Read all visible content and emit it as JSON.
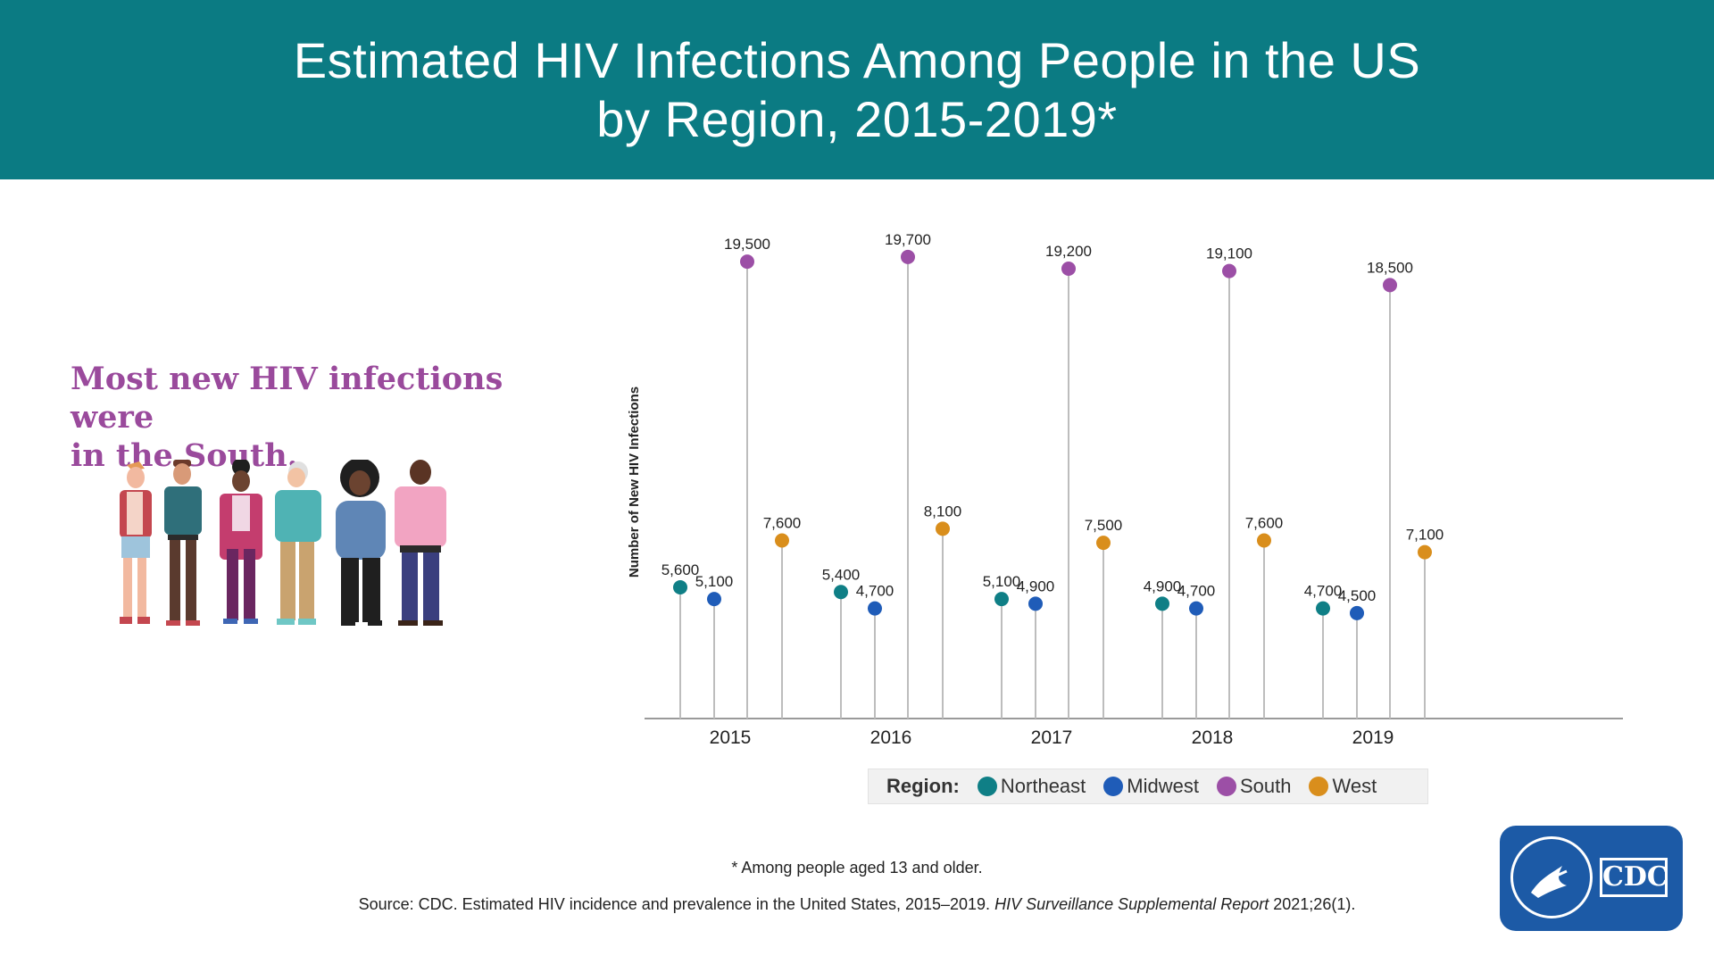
{
  "header": {
    "title_line1": "Estimated HIV Infections Among People in the US",
    "title_line2": "by Region, 2015-2019*"
  },
  "headline": {
    "line1": "Most new HIV infections were",
    "line2": "in the South."
  },
  "chart_data": {
    "type": "lollipop",
    "ylabel": "Number of New HIV Infections",
    "ylim": [
      0,
      20000
    ],
    "categories": [
      "2015",
      "2016",
      "2017",
      "2018",
      "2019"
    ],
    "series": [
      {
        "name": "Northeast",
        "color": "#0f7f86",
        "values": [
          5600,
          5400,
          5100,
          4900,
          4700
        ],
        "labels": [
          "5,600",
          "5,400",
          "5,100",
          "4,900",
          "4,700"
        ]
      },
      {
        "name": "Midwest",
        "color": "#1f5cb8",
        "values": [
          5100,
          4700,
          4900,
          4700,
          4500
        ],
        "labels": [
          "5,100",
          "4,700",
          "4,900",
          "4,700",
          "4,500"
        ]
      },
      {
        "name": "South",
        "color": "#9c4fa6",
        "values": [
          19500,
          19700,
          19200,
          19100,
          18500
        ],
        "labels": [
          "19,500",
          "19,700",
          "19,200",
          "19,100",
          "18,500"
        ]
      },
      {
        "name": "West",
        "color": "#d98e1c",
        "values": [
          7600,
          8100,
          7500,
          7600,
          7100
        ],
        "labels": [
          "7,600",
          "8,100",
          "7,500",
          "7,600",
          "7,100"
        ]
      }
    ]
  },
  "legend": {
    "title": "Region:",
    "items": [
      {
        "label": "Northeast",
        "color": "#0f7f86"
      },
      {
        "label": "Midwest",
        "color": "#1f5cb8"
      },
      {
        "label": "South",
        "color": "#9c4fa6"
      },
      {
        "label": "West",
        "color": "#d98e1c"
      }
    ]
  },
  "footnote": "* Among people aged 13 and older.",
  "source": {
    "prefix": "Source: CDC. Estimated HIV incidence and prevalence in the United States, 2015–2019.",
    "italic": "HIV Surveillance Supplemental Report",
    "suffix": "2021;26(1)."
  },
  "logo": {
    "text": "CDC"
  }
}
